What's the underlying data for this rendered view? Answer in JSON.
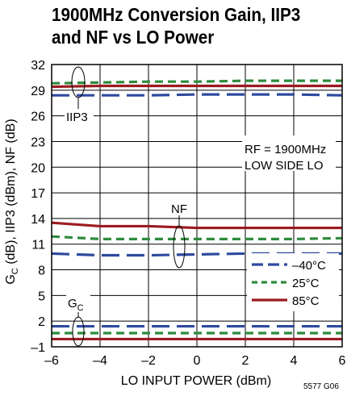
{
  "title_lines": [
    "1900MHz Conversion Gain, IIP3",
    "and NF vs LO Power"
  ],
  "chart_data": {
    "type": "line",
    "title": "1900MHz Conversion Gain, IIP3 and NF vs LO Power",
    "xlabel": "LO INPUT POWER (dBm)",
    "ylabel_parts": [
      {
        "t": "G",
        "sub": false
      },
      {
        "t": "C",
        "sub": true
      },
      {
        "t": " (dB), IIP3 (dBm), NF (dB)",
        "sub": false
      }
    ],
    "xlim": [
      -6,
      6
    ],
    "ylim": [
      -1,
      32
    ],
    "xticks": [
      -6,
      -4,
      -2,
      0,
      2,
      4,
      6
    ],
    "xtick_labels": [
      "–6",
      "–4",
      "–2",
      "0",
      "2",
      "4",
      "6"
    ],
    "yticks": [
      -1,
      2,
      5,
      8,
      11,
      14,
      17,
      20,
      23,
      26,
      29,
      32
    ],
    "ytick_labels": [
      "–1",
      "2",
      "5",
      "8",
      "11",
      "14",
      "17",
      "20",
      "23",
      "26",
      "29",
      "32"
    ],
    "grid": true,
    "x": [
      -6,
      -4,
      -2,
      0,
      2,
      4,
      6
    ],
    "series": [
      {
        "name": "–40°C",
        "group": "IIP3",
        "color": "#2e4a9e",
        "dash": "long",
        "values": [
          28.4,
          28.4,
          28.4,
          28.5,
          28.5,
          28.5,
          28.4
        ]
      },
      {
        "name": "25°C",
        "group": "IIP3",
        "color": "#2e8b3e",
        "dash": "short",
        "values": [
          29.8,
          29.9,
          30.0,
          30.0,
          30.1,
          30.1,
          30.1
        ]
      },
      {
        "name": "85°C",
        "group": "IIP3",
        "color": "#9b1b20",
        "dash": "solid",
        "values": [
          29.4,
          29.5,
          29.5,
          29.5,
          29.5,
          29.5,
          29.5
        ]
      },
      {
        "name": "–40°C",
        "group": "NF",
        "color": "#2e4a9e",
        "dash": "long",
        "values": [
          9.9,
          9.7,
          9.7,
          9.8,
          9.9,
          9.9,
          9.9
        ]
      },
      {
        "name": "25°C",
        "group": "NF",
        "color": "#2e8b3e",
        "dash": "short",
        "values": [
          11.9,
          11.6,
          11.6,
          11.6,
          11.6,
          11.6,
          11.7
        ]
      },
      {
        "name": "85°C",
        "group": "NF",
        "color": "#9b1b20",
        "dash": "solid",
        "values": [
          13.5,
          13.1,
          13.1,
          12.9,
          12.9,
          12.9,
          12.9
        ]
      },
      {
        "name": "–40°C",
        "group": "GC",
        "color": "#2e4a9e",
        "dash": "long",
        "values": [
          1.4,
          1.4,
          1.4,
          1.4,
          1.4,
          1.4,
          1.4
        ]
      },
      {
        "name": "25°C",
        "group": "GC",
        "color": "#2e8b3e",
        "dash": "short",
        "values": [
          0.6,
          0.6,
          0.6,
          0.6,
          0.6,
          0.6,
          0.6
        ]
      },
      {
        "name": "85°C",
        "group": "GC",
        "color": "#9b1b20",
        "dash": "solid",
        "values": [
          -0.1,
          -0.1,
          -0.1,
          -0.1,
          -0.1,
          -0.1,
          -0.1
        ]
      }
    ],
    "legend": {
      "placement": "lower-right",
      "items": [
        {
          "label": "–40°C",
          "color": "#2e4a9e",
          "dash": "long"
        },
        {
          "label": "25°C",
          "color": "#2e8b3e",
          "dash": "short"
        },
        {
          "label": "85°C",
          "color": "#9b1b20",
          "dash": "solid"
        }
      ]
    },
    "annotations": {
      "iip3": "IIP3",
      "nf": "NF",
      "gc": {
        "main": "G",
        "sub": "C"
      },
      "conditions": [
        "RF = 1900MHz",
        "LOW SIDE LO"
      ]
    },
    "figure_code": "5577 G06"
  }
}
